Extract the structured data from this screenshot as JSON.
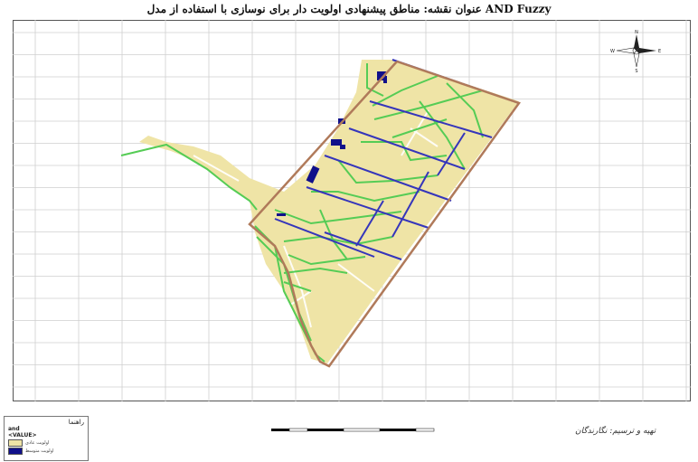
{
  "map": {
    "title": "عنوان نقشه: مناطق پیشنهادی اولویت دار برای نوسازی با استفاده از مدل AND Fuzzy",
    "colors": {
      "zone_fill": "#efe4a6",
      "roads": "#55cc55",
      "blue_lines": "#3535bb",
      "boundary": "#b07a5a",
      "high_priority": "#10108a",
      "grid": "#cfcfcf"
    }
  },
  "legend": {
    "title": "راهنما",
    "layer_name": "and",
    "field": "<VALUE>",
    "items": [
      {
        "label": "اولویت عادی",
        "color": "#efe4a6"
      },
      {
        "label": "اولویت متوسط",
        "color": "#10108a"
      }
    ]
  },
  "north_arrow": {
    "n": "N",
    "e": "E",
    "s": "S",
    "w": "W"
  },
  "producer": "تهیه و ترسیم: نگارندگان"
}
